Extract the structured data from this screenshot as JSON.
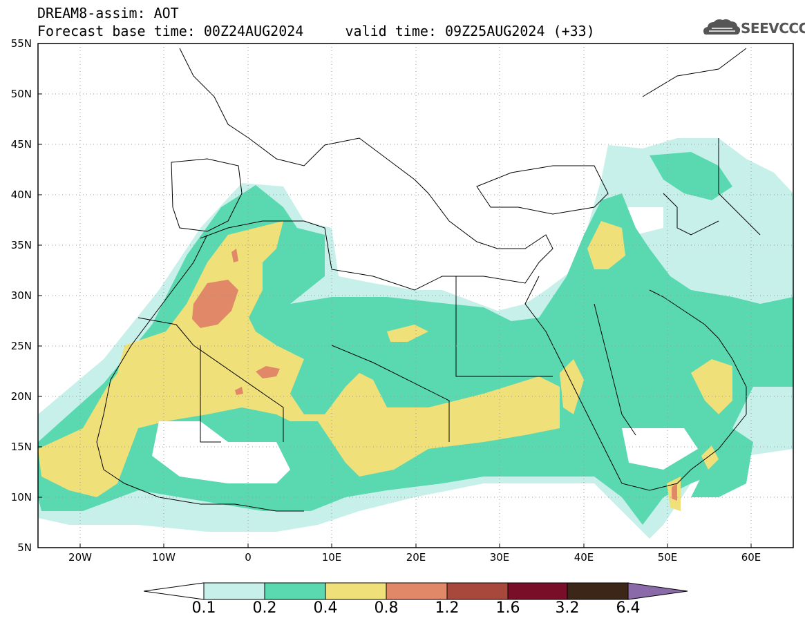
{
  "header": {
    "line1": "DREAM8-assim: AOT",
    "line2": "Forecast base time: 00Z24AUG2024     valid time: 09Z25AUG2024 (+33)"
  },
  "logo": {
    "text": "SEEVCCC",
    "icon": "cloud-icon"
  },
  "map": {
    "lon_range": [
      -25,
      65
    ],
    "lat_range": [
      5,
      55
    ],
    "grid": true,
    "lat_ticks": [
      "55N",
      "50N",
      "45N",
      "40N",
      "35N",
      "30N",
      "25N",
      "20N",
      "15N",
      "10N",
      "5N"
    ],
    "lon_ticks": [
      "20W",
      "10W",
      "0",
      "10E",
      "20E",
      "30E",
      "40E",
      "50E",
      "60E"
    ]
  },
  "colorbar": {
    "levels": [
      "0.1",
      "0.2",
      "0.4",
      "0.8",
      "1.2",
      "1.6",
      "3.2",
      "6.4"
    ],
    "colors": [
      "#c8f0ea",
      "#5ad9b0",
      "#f0e07a",
      "#e08868",
      "#a8483c",
      "#780e28",
      "#3c2618",
      "#8a6aa8"
    ]
  }
}
